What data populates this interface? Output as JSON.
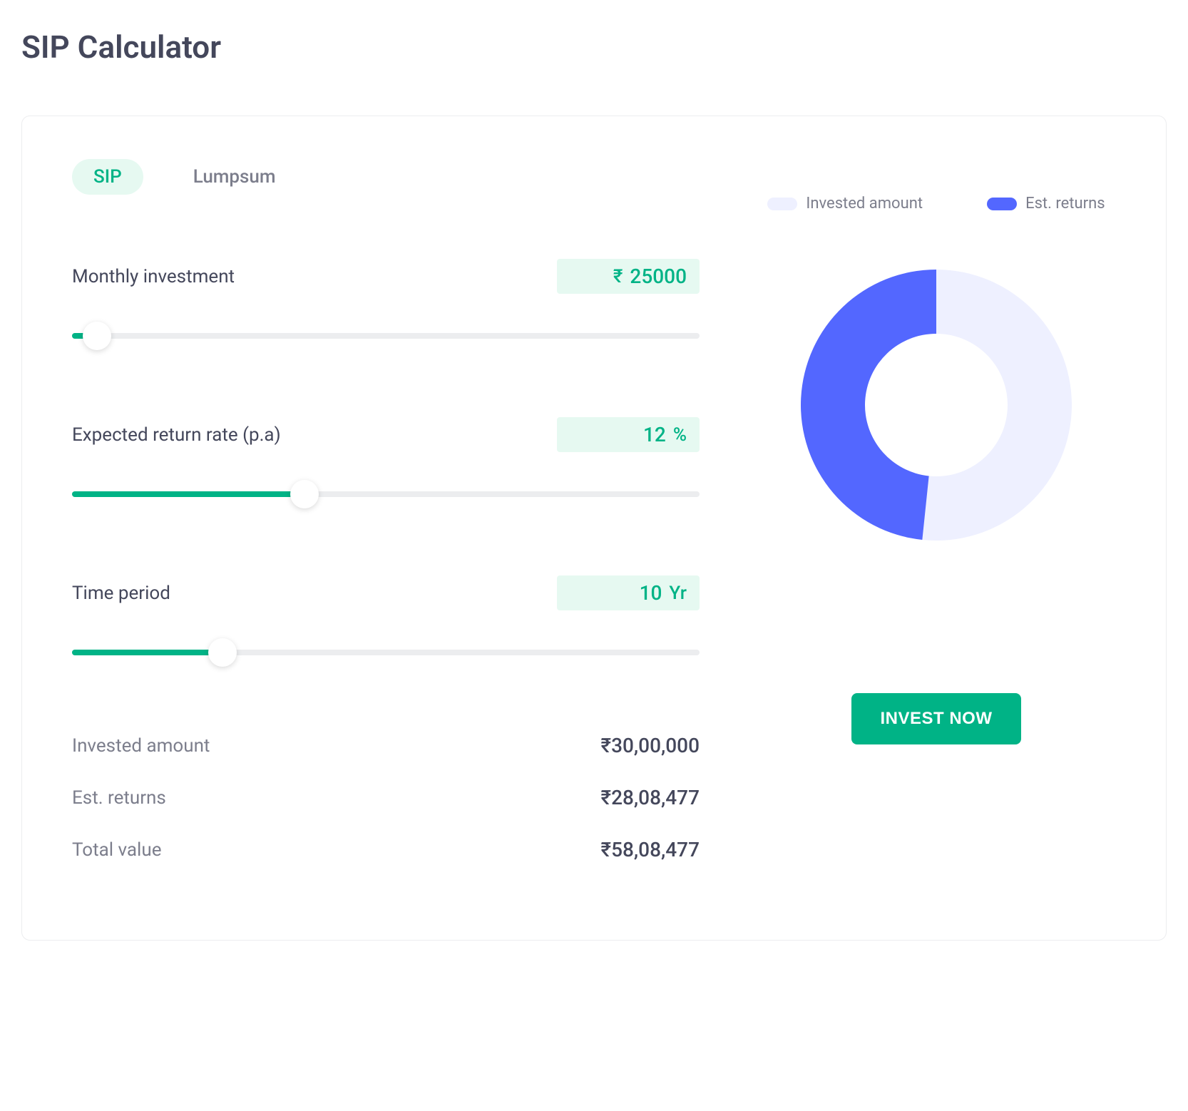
{
  "title": "SIP Calculator",
  "tabs": {
    "sip": "SIP",
    "lumpsum": "Lumpsum"
  },
  "inputs": {
    "monthly": {
      "label": "Monthly investment",
      "prefix": "₹",
      "value": "25000",
      "slider_pct": 4
    },
    "rate": {
      "label": "Expected return rate (p.a)",
      "value": "12",
      "suffix": "%",
      "slider_pct": 37
    },
    "period": {
      "label": "Time period",
      "value": "10",
      "suffix": "Yr",
      "slider_pct": 24
    }
  },
  "results": {
    "invested": {
      "label": "Invested amount",
      "value": "₹30,00,000"
    },
    "returns": {
      "label": "Est. returns",
      "value": "₹28,08,477"
    },
    "total": {
      "label": "Total value",
      "value": "₹58,08,477"
    }
  },
  "chart": {
    "type": "donut",
    "invested_pct": 51.65,
    "returns_pct": 48.35,
    "colors": {
      "invested": "#eef0ff",
      "returns": "#5367ff"
    },
    "inner_radius": 100,
    "outer_radius": 190,
    "background": "#ffffff"
  },
  "legend": {
    "invested": "Invested amount",
    "returns": "Est. returns"
  },
  "cta": "INVEST NOW",
  "style": {
    "accent_green": "#00b386",
    "accent_green_bg": "#e6f9f1",
    "text_primary": "#44475b",
    "text_muted": "#7c7e8c",
    "border": "#ecedef",
    "slider_track": "#ecedef"
  }
}
